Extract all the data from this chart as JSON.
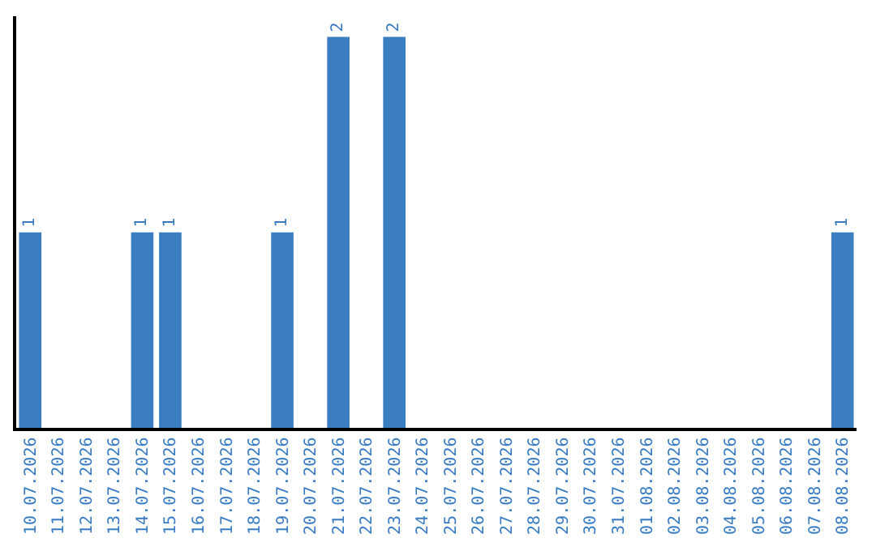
{
  "chart_data": {
    "type": "bar",
    "categories": [
      "10.07.2026",
      "11.07.2026",
      "12.07.2026",
      "13.07.2026",
      "14.07.2026",
      "15.07.2026",
      "16.07.2026",
      "17.07.2026",
      "18.07.2026",
      "19.07.2026",
      "20.07.2026",
      "21.07.2026",
      "22.07.2026",
      "23.07.2026",
      "24.07.2026",
      "25.07.2026",
      "26.07.2026",
      "27.07.2026",
      "28.07.2026",
      "29.07.2026",
      "30.07.2026",
      "31.07.2026",
      "01.08.2026",
      "02.08.2026",
      "03.08.2026",
      "04.08.2026",
      "05.08.2026",
      "06.08.2026",
      "07.08.2026",
      "08.08.2026"
    ],
    "values": [
      1,
      0,
      0,
      0,
      1,
      1,
      0,
      0,
      0,
      1,
      0,
      2,
      0,
      2,
      0,
      0,
      0,
      0,
      0,
      0,
      0,
      0,
      0,
      0,
      0,
      0,
      0,
      0,
      0,
      1
    ],
    "value_labels": [
      "1",
      null,
      null,
      null,
      "1",
      "1",
      null,
      null,
      null,
      "1",
      null,
      "2",
      null,
      "2",
      null,
      null,
      null,
      null,
      null,
      null,
      null,
      null,
      null,
      null,
      null,
      null,
      null,
      null,
      null,
      "1"
    ],
    "color": "#3b7dc1",
    "tick_labels": "x"
  }
}
